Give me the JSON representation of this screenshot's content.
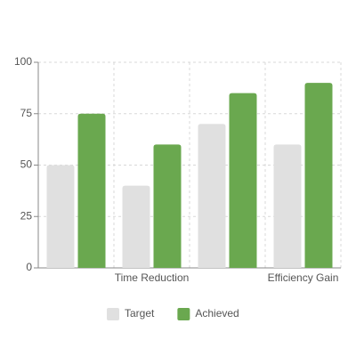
{
  "chart_data": {
    "type": "bar",
    "categories": [
      null,
      "Time Reduction",
      null,
      "Efficiency Gain"
    ],
    "series": [
      {
        "name": "Target",
        "color": "#e0e0e0",
        "values": [
          50,
          40,
          70,
          60
        ]
      },
      {
        "name": "Achieved",
        "color": "#6aa84f",
        "values": [
          75,
          60,
          85,
          90
        ]
      }
    ],
    "ylim": [
      0,
      100
    ],
    "yticks": [
      0,
      25,
      50,
      75,
      100
    ],
    "grid": true,
    "legend": "bottom"
  }
}
